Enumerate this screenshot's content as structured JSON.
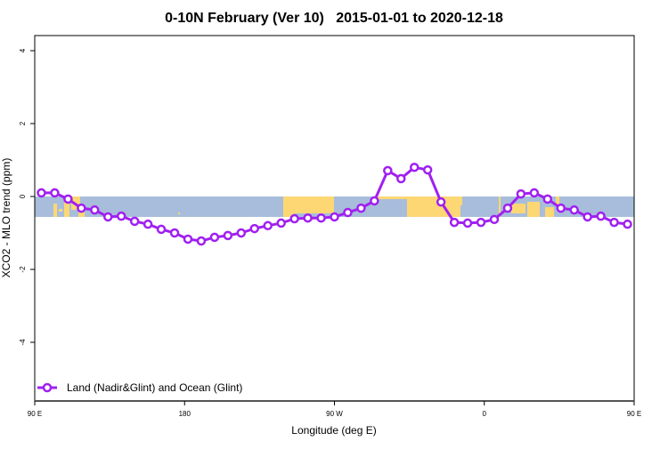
{
  "chart_data": {
    "type": "line",
    "title": "0-10N February (Ver 10)   2015-01-01 to 2020-12-18",
    "xlabel": "Longitude (deg E)",
    "ylabel": "XCO2 - MLO trend (ppm)",
    "xlim": [
      90,
      450
    ],
    "ylim": [
      -5.6,
      4.4
    ],
    "x_ticks": [
      {
        "value": 90,
        "label": "90 E"
      },
      {
        "value": 180,
        "label": "180"
      },
      {
        "value": 270,
        "label": "90 W"
      },
      {
        "value": 360,
        "label": "0"
      },
      {
        "value": 450,
        "label": "90 E"
      },
      {
        "value": 540,
        "label": "180"
      }
    ],
    "y_ticks": [
      {
        "value": 4,
        "label": "4"
      },
      {
        "value": 2,
        "label": "2"
      },
      {
        "value": 0,
        "label": "0"
      },
      {
        "value": -2,
        "label": "-2"
      },
      {
        "value": -4,
        "label": "-4"
      }
    ],
    "grid": false,
    "legend_position": "bottom-left",
    "background_band": {
      "ymin": -0.56,
      "ymax": 0,
      "ocean_color": "#A7BDDB",
      "land_color": "#FDD774"
    },
    "series": [
      {
        "name": "Land (Nadir&Glint) and Ocean (Glint)",
        "color": "#A020F0",
        "x": [
          94,
          102,
          110,
          118,
          126,
          134,
          142,
          150,
          158,
          166,
          174,
          182,
          190,
          198,
          206,
          214,
          222,
          230,
          238,
          246,
          254,
          262,
          270,
          278,
          286,
          294,
          302,
          310,
          318,
          326,
          334,
          342,
          350,
          358,
          366,
          374,
          382,
          390,
          398,
          406,
          414,
          422,
          430,
          438,
          446
        ],
        "values": [
          0.1,
          0.1,
          -0.07,
          -0.32,
          -0.37,
          -0.56,
          -0.54,
          -0.68,
          -0.76,
          -0.9,
          -1.0,
          -1.17,
          -1.22,
          -1.12,
          -1.07,
          -1.0,
          -0.88,
          -0.8,
          -0.73,
          -0.61,
          -0.59,
          -0.59,
          -0.56,
          -0.44,
          -0.32,
          -0.12,
          0.71,
          0.49,
          0.8,
          0.73,
          -0.15,
          -0.71,
          -0.73,
          -0.71,
          -0.63,
          -0.32,
          0.07,
          0.1,
          -0.07,
          -0.32,
          -0.37,
          -0.56,
          -0.54,
          -0.71,
          -0.76
        ]
      }
    ]
  }
}
